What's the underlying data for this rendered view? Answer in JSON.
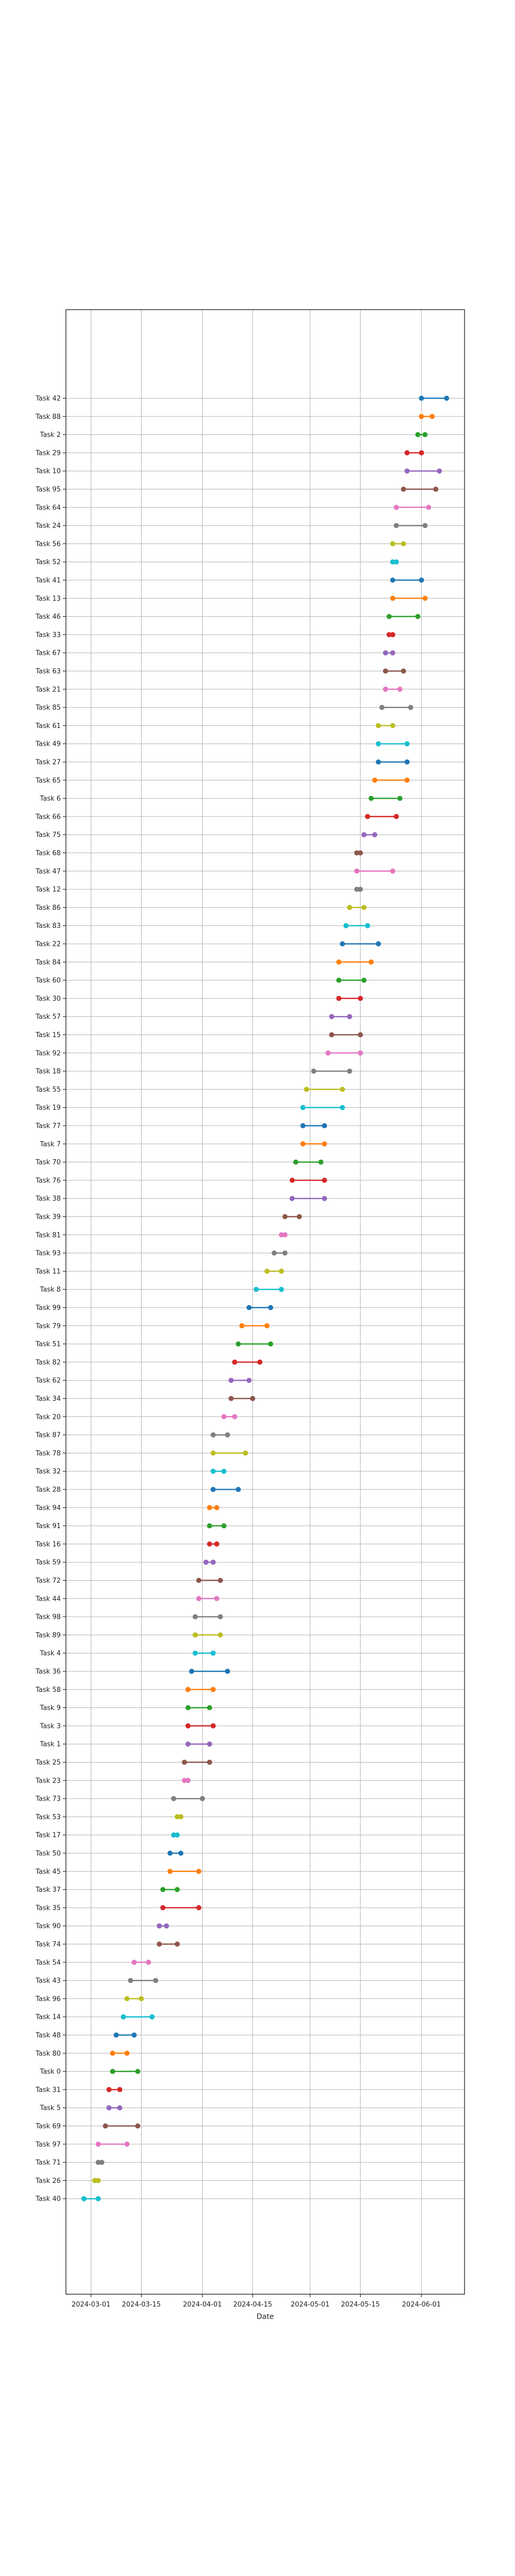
{
  "chart_data": {
    "type": "dumbbell",
    "title": "",
    "xlabel": "Date",
    "ylabel": "",
    "grid": true,
    "x_ticks": [
      "2024-03-01",
      "2024-03-15",
      "2024-04-01",
      "2024-04-15",
      "2024-05-01",
      "2024-05-15",
      "2024-06-01"
    ],
    "xlim": [
      "2024-02-23",
      "2024-06-13"
    ],
    "series_colors": [
      "#1f77b4",
      "#ff7f0e",
      "#2ca02c",
      "#d62728",
      "#9467bd",
      "#8c564b",
      "#e377c2",
      "#7f7f7f",
      "#bcbd22",
      "#17becf"
    ],
    "tasks": [
      {
        "task": "Task 42",
        "start": "2024-06-01",
        "end": "2024-06-08"
      },
      {
        "task": "Task 88",
        "start": "2024-06-01",
        "end": "2024-06-04"
      },
      {
        "task": "Task 2",
        "start": "2024-05-31",
        "end": "2024-06-02"
      },
      {
        "task": "Task 29",
        "start": "2024-05-28",
        "end": "2024-06-01"
      },
      {
        "task": "Task 10",
        "start": "2024-05-28",
        "end": "2024-06-06"
      },
      {
        "task": "Task 95",
        "start": "2024-05-27",
        "end": "2024-06-05"
      },
      {
        "task": "Task 64",
        "start": "2024-05-25",
        "end": "2024-06-03"
      },
      {
        "task": "Task 24",
        "start": "2024-05-25",
        "end": "2024-06-02"
      },
      {
        "task": "Task 56",
        "start": "2024-05-24",
        "end": "2024-05-27"
      },
      {
        "task": "Task 52",
        "start": "2024-05-24",
        "end": "2024-05-25"
      },
      {
        "task": "Task 41",
        "start": "2024-05-24",
        "end": "2024-06-01"
      },
      {
        "task": "Task 13",
        "start": "2024-05-24",
        "end": "2024-06-02"
      },
      {
        "task": "Task 46",
        "start": "2024-05-23",
        "end": "2024-05-31"
      },
      {
        "task": "Task 33",
        "start": "2024-05-23",
        "end": "2024-05-24"
      },
      {
        "task": "Task 67",
        "start": "2024-05-22",
        "end": "2024-05-24"
      },
      {
        "task": "Task 63",
        "start": "2024-05-22",
        "end": "2024-05-27"
      },
      {
        "task": "Task 21",
        "start": "2024-05-22",
        "end": "2024-05-26"
      },
      {
        "task": "Task 85",
        "start": "2024-05-21",
        "end": "2024-05-29"
      },
      {
        "task": "Task 61",
        "start": "2024-05-20",
        "end": "2024-05-24"
      },
      {
        "task": "Task 49",
        "start": "2024-05-20",
        "end": "2024-05-28"
      },
      {
        "task": "Task 27",
        "start": "2024-05-20",
        "end": "2024-05-28"
      },
      {
        "task": "Task 65",
        "start": "2024-05-19",
        "end": "2024-05-28"
      },
      {
        "task": "Task 6",
        "start": "2024-05-18",
        "end": "2024-05-26"
      },
      {
        "task": "Task 66",
        "start": "2024-05-17",
        "end": "2024-05-25"
      },
      {
        "task": "Task 75",
        "start": "2024-05-16",
        "end": "2024-05-19"
      },
      {
        "task": "Task 68",
        "start": "2024-05-14",
        "end": "2024-05-15"
      },
      {
        "task": "Task 47",
        "start": "2024-05-14",
        "end": "2024-05-24"
      },
      {
        "task": "Task 12",
        "start": "2024-05-14",
        "end": "2024-05-15"
      },
      {
        "task": "Task 86",
        "start": "2024-05-12",
        "end": "2024-05-16"
      },
      {
        "task": "Task 83",
        "start": "2024-05-11",
        "end": "2024-05-17"
      },
      {
        "task": "Task 22",
        "start": "2024-05-10",
        "end": "2024-05-20"
      },
      {
        "task": "Task 84",
        "start": "2024-05-09",
        "end": "2024-05-18"
      },
      {
        "task": "Task 60",
        "start": "2024-05-09",
        "end": "2024-05-16"
      },
      {
        "task": "Task 30",
        "start": "2024-05-09",
        "end": "2024-05-15"
      },
      {
        "task": "Task 57",
        "start": "2024-05-07",
        "end": "2024-05-12"
      },
      {
        "task": "Task 15",
        "start": "2024-05-07",
        "end": "2024-05-15"
      },
      {
        "task": "Task 92",
        "start": "2024-05-06",
        "end": "2024-05-15"
      },
      {
        "task": "Task 18",
        "start": "2024-05-02",
        "end": "2024-05-12"
      },
      {
        "task": "Task 55",
        "start": "2024-04-30",
        "end": "2024-05-10"
      },
      {
        "task": "Task 19",
        "start": "2024-04-29",
        "end": "2024-05-10"
      },
      {
        "task": "Task 77",
        "start": "2024-04-29",
        "end": "2024-05-05"
      },
      {
        "task": "Task 7",
        "start": "2024-04-29",
        "end": "2024-05-05"
      },
      {
        "task": "Task 70",
        "start": "2024-04-27",
        "end": "2024-05-04"
      },
      {
        "task": "Task 76",
        "start": "2024-04-26",
        "end": "2024-05-05"
      },
      {
        "task": "Task 38",
        "start": "2024-04-26",
        "end": "2024-05-05"
      },
      {
        "task": "Task 39",
        "start": "2024-04-24",
        "end": "2024-04-28"
      },
      {
        "task": "Task 81",
        "start": "2024-04-23",
        "end": "2024-04-24"
      },
      {
        "task": "Task 93",
        "start": "2024-04-21",
        "end": "2024-04-24"
      },
      {
        "task": "Task 11",
        "start": "2024-04-19",
        "end": "2024-04-23"
      },
      {
        "task": "Task 8",
        "start": "2024-04-16",
        "end": "2024-04-23"
      },
      {
        "task": "Task 99",
        "start": "2024-04-14",
        "end": "2024-04-20"
      },
      {
        "task": "Task 79",
        "start": "2024-04-12",
        "end": "2024-04-19"
      },
      {
        "task": "Task 51",
        "start": "2024-04-11",
        "end": "2024-04-20"
      },
      {
        "task": "Task 82",
        "start": "2024-04-10",
        "end": "2024-04-17"
      },
      {
        "task": "Task 62",
        "start": "2024-04-09",
        "end": "2024-04-14"
      },
      {
        "task": "Task 34",
        "start": "2024-04-09",
        "end": "2024-04-15"
      },
      {
        "task": "Task 20",
        "start": "2024-04-07",
        "end": "2024-04-10"
      },
      {
        "task": "Task 87",
        "start": "2024-04-04",
        "end": "2024-04-08"
      },
      {
        "task": "Task 78",
        "start": "2024-04-04",
        "end": "2024-04-13"
      },
      {
        "task": "Task 32",
        "start": "2024-04-04",
        "end": "2024-04-07"
      },
      {
        "task": "Task 28",
        "start": "2024-04-04",
        "end": "2024-04-11"
      },
      {
        "task": "Task 94",
        "start": "2024-04-03",
        "end": "2024-04-05"
      },
      {
        "task": "Task 91",
        "start": "2024-04-03",
        "end": "2024-04-07"
      },
      {
        "task": "Task 16",
        "start": "2024-04-03",
        "end": "2024-04-05"
      },
      {
        "task": "Task 59",
        "start": "2024-04-02",
        "end": "2024-04-04"
      },
      {
        "task": "Task 72",
        "start": "2024-03-31",
        "end": "2024-04-06"
      },
      {
        "task": "Task 44",
        "start": "2024-03-31",
        "end": "2024-04-05"
      },
      {
        "task": "Task 98",
        "start": "2024-03-30",
        "end": "2024-04-06"
      },
      {
        "task": "Task 89",
        "start": "2024-03-30",
        "end": "2024-04-06"
      },
      {
        "task": "Task 4",
        "start": "2024-03-30",
        "end": "2024-04-04"
      },
      {
        "task": "Task 36",
        "start": "2024-03-29",
        "end": "2024-04-08"
      },
      {
        "task": "Task 58",
        "start": "2024-03-28",
        "end": "2024-04-04"
      },
      {
        "task": "Task 9",
        "start": "2024-03-28",
        "end": "2024-04-03"
      },
      {
        "task": "Task 3",
        "start": "2024-03-28",
        "end": "2024-04-04"
      },
      {
        "task": "Task 1",
        "start": "2024-03-28",
        "end": "2024-04-03"
      },
      {
        "task": "Task 25",
        "start": "2024-03-27",
        "end": "2024-04-03"
      },
      {
        "task": "Task 23",
        "start": "2024-03-27",
        "end": "2024-03-28"
      },
      {
        "task": "Task 73",
        "start": "2024-03-24",
        "end": "2024-04-01"
      },
      {
        "task": "Task 53",
        "start": "2024-03-25",
        "end": "2024-03-26"
      },
      {
        "task": "Task 17",
        "start": "2024-03-24",
        "end": "2024-03-25"
      },
      {
        "task": "Task 50",
        "start": "2024-03-23",
        "end": "2024-03-26"
      },
      {
        "task": "Task 45",
        "start": "2024-03-23",
        "end": "2024-03-31"
      },
      {
        "task": "Task 37",
        "start": "2024-03-21",
        "end": "2024-03-25"
      },
      {
        "task": "Task 35",
        "start": "2024-03-21",
        "end": "2024-03-31"
      },
      {
        "task": "Task 90",
        "start": "2024-03-20",
        "end": "2024-03-22"
      },
      {
        "task": "Task 74",
        "start": "2024-03-20",
        "end": "2024-03-25"
      },
      {
        "task": "Task 54",
        "start": "2024-03-13",
        "end": "2024-03-17"
      },
      {
        "task": "Task 43",
        "start": "2024-03-12",
        "end": "2024-03-19"
      },
      {
        "task": "Task 96",
        "start": "2024-03-11",
        "end": "2024-03-15"
      },
      {
        "task": "Task 14",
        "start": "2024-03-10",
        "end": "2024-03-18"
      },
      {
        "task": "Task 48",
        "start": "2024-03-08",
        "end": "2024-03-13"
      },
      {
        "task": "Task 80",
        "start": "2024-03-07",
        "end": "2024-03-11"
      },
      {
        "task": "Task 0",
        "start": "2024-03-07",
        "end": "2024-03-14"
      },
      {
        "task": "Task 31",
        "start": "2024-03-06",
        "end": "2024-03-09"
      },
      {
        "task": "Task 5",
        "start": "2024-03-06",
        "end": "2024-03-09"
      },
      {
        "task": "Task 69",
        "start": "2024-03-05",
        "end": "2024-03-14"
      },
      {
        "task": "Task 97",
        "start": "2024-03-03",
        "end": "2024-03-11"
      },
      {
        "task": "Task 71",
        "start": "2024-03-03",
        "end": "2024-03-04"
      },
      {
        "task": "Task 26",
        "start": "2024-03-02",
        "end": "2024-03-03"
      },
      {
        "task": "Task 40",
        "start": "2024-02-28",
        "end": "2024-03-03"
      }
    ]
  }
}
